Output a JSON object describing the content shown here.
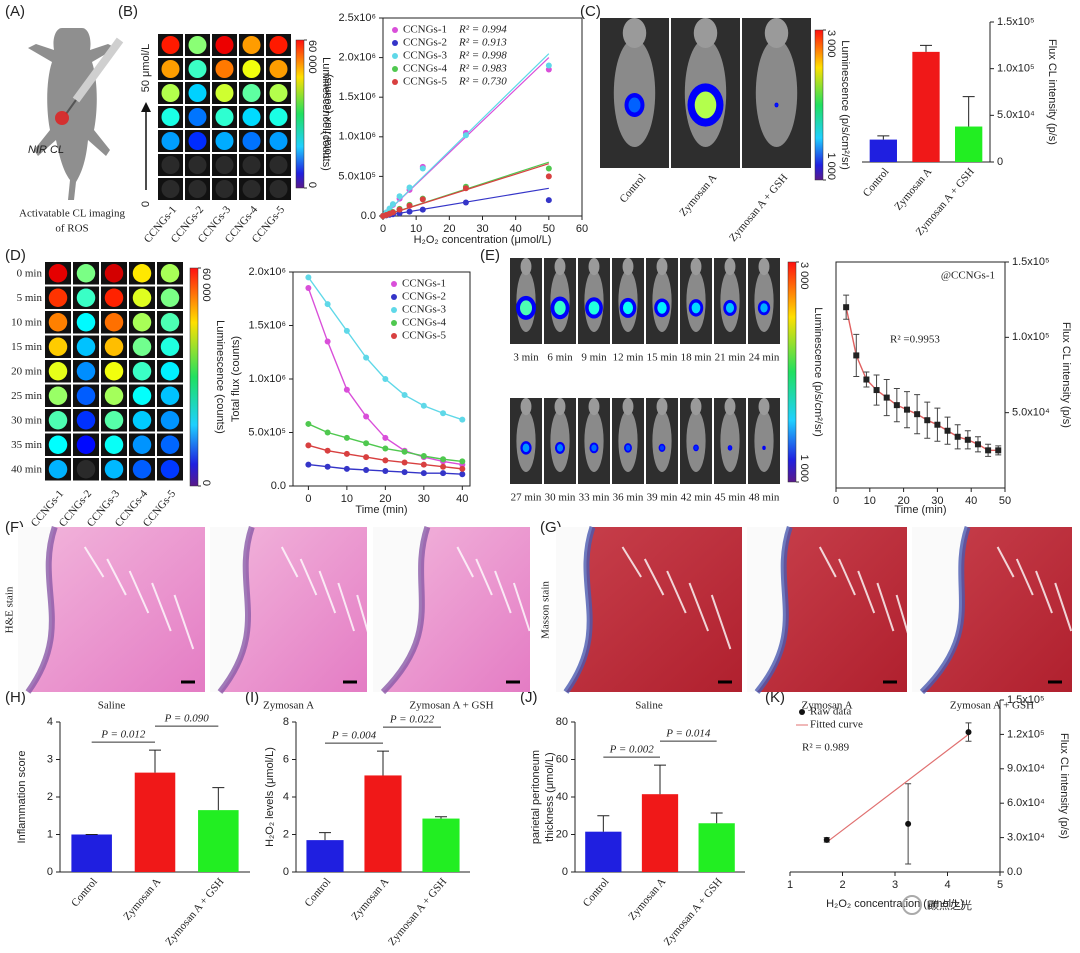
{
  "panel_labels": [
    "(A)",
    "(B)",
    "(C)",
    "(D)",
    "(E)",
    "(F)",
    "(G)",
    "(H)",
    "(I)",
    "(J)",
    "(K)"
  ],
  "panel_a": {
    "label": "NIR CL",
    "caption": [
      "Activatable CL imaging",
      "of ROS"
    ]
  },
  "panel_b_image": {
    "columns": [
      "CCNGs-1",
      "CCNGs-2",
      "CCNGs-3",
      "CCNGs-4",
      "CCNGs-5"
    ],
    "gradient_label": "50 μmol/L",
    "gradient_start": "0",
    "colorbar": {
      "label": "Luminescence (counts)",
      "lim": [
        0,
        60000
      ],
      "ticks": [
        0,
        {
          "value": 60000,
          "label": "60 000"
        }
      ]
    }
  },
  "panel_c_image": {
    "columns": [
      "Control",
      "Zymosan A",
      "Zymosan A + GSH"
    ],
    "colorbar": {
      "label": "Luminescence (p/s/cm²/sr)",
      "lim": [
        1000,
        3000
      ],
      "ticks": [
        {
          "value": 1000,
          "label": "1 000"
        },
        {
          "value": 3000,
          "label": "3 000"
        }
      ]
    }
  },
  "panel_d_image": {
    "rows": [
      "0 min",
      "5 min",
      "10 min",
      "15 min",
      "20 min",
      "25 min",
      "30 min",
      "35 min",
      "40 min"
    ],
    "columns": [
      "CCNGs-1",
      "CCNGs-2",
      "CCNGs-3",
      "CCNGs-4",
      "CCNGs-5"
    ],
    "colorbar": {
      "label": "Luminescence (counts)",
      "lim": [
        0,
        60000
      ],
      "ticks": [
        0,
        {
          "value": 60000,
          "label": "60 000"
        }
      ]
    }
  },
  "panel_e_image": {
    "times": [
      "3 min",
      "6 min",
      "9 min",
      "12 min",
      "15 min",
      "18 min",
      "21 min",
      "24 min",
      "27 min",
      "30 min",
      "33 min",
      "36 min",
      "39 min",
      "42 min",
      "45 min",
      "48 min"
    ],
    "colorbar": {
      "label": "Luminescence (p/s/cm²/sr)",
      "lim": [
        1000,
        3000
      ],
      "ticks": [
        {
          "value": 1000,
          "label": "1 000"
        },
        {
          "value": 3000,
          "label": "3 000"
        }
      ]
    }
  },
  "panel_f": {
    "stain": "H&E stain",
    "columns": [
      "Saline",
      "Zymosan A",
      "Zymosan A + GSH"
    ]
  },
  "panel_g": {
    "stain": "Masson stain",
    "columns": [
      "Saline",
      "Zymosan A",
      "Zymosan A + GSH"
    ]
  },
  "watermark": "碳点之光",
  "chart_data": [
    {
      "type": "scatter",
      "xlabel": "H₂O₂ concentration (μmol/L)",
      "ylabel": "Total flux (counts)",
      "xlim": [
        0,
        60
      ],
      "xticks": [
        0,
        10,
        20,
        30,
        40,
        50,
        60
      ],
      "ylim": [
        0,
        2500000
      ],
      "yticks": [
        {
          "value": 0,
          "label": "0.0"
        },
        {
          "value": 500000,
          "label": "5.0x10⁵"
        },
        {
          "value": 1000000,
          "label": "1.0x10⁶"
        },
        {
          "value": 1500000,
          "label": "1.5x10⁶"
        },
        {
          "value": 2000000,
          "label": "2.0x10⁶"
        },
        {
          "value": 2500000,
          "label": "2.5x10⁶"
        }
      ],
      "frame": true,
      "legend": "upper left",
      "x": [
        0,
        1,
        2,
        3,
        5,
        8,
        12,
        25,
        50
      ],
      "series": [
        {
          "name": "CCNGs-1",
          "annotation": "R² = 0.994",
          "color": "#d94fd9",
          "values": [
            0,
            40000,
            90000,
            140000,
            220000,
            330000,
            620000,
            1050000,
            1850000
          ],
          "fit": {
            "x": [
              0,
              50
            ],
            "values": [
              0,
              2000000
            ]
          }
        },
        {
          "name": "CCNGs-2",
          "annotation": "R² = 0.913",
          "color": "#3535c8",
          "values": [
            0,
            8000,
            15000,
            22000,
            35000,
            55000,
            80000,
            170000,
            200000
          ],
          "fit": {
            "x": [
              0,
              50
            ],
            "values": [
              0,
              350000
            ]
          }
        },
        {
          "name": "CCNGs-3",
          "annotation": "R² = 0.998",
          "color": "#5fd8e8",
          "values": [
            0,
            45000,
            95000,
            150000,
            250000,
            360000,
            600000,
            1020000,
            1900000
          ],
          "fit": {
            "x": [
              0,
              50
            ],
            "values": [
              0,
              2050000
            ]
          }
        },
        {
          "name": "CCNGs-4",
          "annotation": "R² = 0.983",
          "color": "#4fc84f",
          "values": [
            0,
            12000,
            30000,
            50000,
            90000,
            140000,
            220000,
            370000,
            600000
          ],
          "fit": {
            "x": [
              0,
              50
            ],
            "values": [
              0,
              680000
            ]
          }
        },
        {
          "name": "CCNGs-5",
          "annotation": "R² = 0.730",
          "color": "#d84040",
          "values": [
            0,
            12000,
            28000,
            45000,
            80000,
            130000,
            210000,
            350000,
            500000
          ],
          "fit": {
            "x": [
              0,
              50
            ],
            "values": [
              0,
              660000
            ]
          }
        }
      ]
    },
    {
      "type": "bar",
      "ylabel": "Flux CL intensity (p/s)",
      "categories": [
        "Control",
        "Zymosan A",
        "Zymosan A + GSH"
      ],
      "values": [
        24000,
        118000,
        38000
      ],
      "errors": [
        4000,
        7000,
        32000
      ],
      "colors": [
        "#1f1fe0",
        "#f01818",
        "#22ee22"
      ],
      "ylim": [
        0,
        150000
      ],
      "yticks": [
        0,
        {
          "value": 50000,
          "label": "5.0x10⁴"
        },
        {
          "value": 100000,
          "label": "1.0x10⁵"
        },
        {
          "value": 150000,
          "label": "1.5x10⁵"
        }
      ],
      "yaxis_side": "right"
    },
    {
      "type": "line",
      "xlabel": "Time (min)",
      "ylabel": "Total flux (counts)",
      "xlim": [
        -4,
        42
      ],
      "xticks": [
        0,
        10,
        20,
        30,
        40
      ],
      "ylim": [
        0,
        2000000
      ],
      "yticks": [
        {
          "value": 0,
          "label": "0.0"
        },
        {
          "value": 500000,
          "label": "5.0x10⁵"
        },
        {
          "value": 1000000,
          "label": "1.0x10⁶"
        },
        {
          "value": 1500000,
          "label": "1.5x10⁶"
        },
        {
          "value": 2000000,
          "label": "2.0x10⁶"
        }
      ],
      "frame": true,
      "legend": "upper right",
      "x": [
        0,
        5,
        10,
        15,
        20,
        25,
        30,
        35,
        40
      ],
      "series": [
        {
          "name": "CCNGs-1",
          "color": "#d94fd9",
          "values": [
            1850000,
            1350000,
            900000,
            650000,
            450000,
            330000,
            270000,
            230000,
            200000
          ]
        },
        {
          "name": "CCNGs-2",
          "color": "#3535c8",
          "values": [
            200000,
            180000,
            160000,
            150000,
            140000,
            130000,
            120000,
            120000,
            110000
          ]
        },
        {
          "name": "CCNGs-3",
          "color": "#5fd8e8",
          "values": [
            1950000,
            1700000,
            1450000,
            1200000,
            1000000,
            850000,
            750000,
            680000,
            620000
          ]
        },
        {
          "name": "CCNGs-4",
          "color": "#4fc84f",
          "values": [
            580000,
            500000,
            450000,
            400000,
            350000,
            320000,
            280000,
            250000,
            230000
          ]
        },
        {
          "name": "CCNGs-5",
          "color": "#d84040",
          "values": [
            380000,
            330000,
            300000,
            270000,
            240000,
            220000,
            200000,
            180000,
            160000
          ]
        }
      ]
    },
    {
      "type": "line",
      "xlabel": "Time (min)",
      "ylabel": "Flux CL intensity (p/s)",
      "xlim": [
        0,
        50
      ],
      "xticks": [
        0,
        10,
        20,
        30,
        40,
        50
      ],
      "ylim": [
        0,
        150000
      ],
      "yticks": [
        {
          "value": 50000,
          "label": "5.0x10⁴"
        },
        {
          "value": 100000,
          "label": "1.0x10⁵"
        },
        {
          "value": 150000,
          "label": "1.5x10⁵"
        }
      ],
      "frame": true,
      "yaxis_side": "right",
      "notes": [
        "@CCNGs-1",
        "R² =0.9953"
      ],
      "x": [
        3,
        6,
        9,
        12,
        15,
        18,
        21,
        24,
        27,
        30,
        33,
        36,
        39,
        42,
        45,
        48
      ],
      "series": [
        {
          "color": "#222222",
          "line_color": "#e06060",
          "values": [
            120000,
            88000,
            72000,
            65000,
            60000,
            55000,
            52000,
            49000,
            45000,
            42000,
            38000,
            34000,
            32000,
            29000,
            25000,
            25000
          ],
          "errors": [
            8000,
            14000,
            5000,
            10000,
            12000,
            11000,
            12000,
            13000,
            12000,
            11000,
            9000,
            8000,
            6000,
            5000,
            4000,
            3000
          ]
        }
      ]
    },
    {
      "type": "bar",
      "ylabel": "Inflammation score",
      "categories": [
        "Control",
        "Zymosan A",
        "Zymosan A + GSH"
      ],
      "values": [
        1,
        2.65,
        1.65
      ],
      "errors": [
        0,
        0.6,
        0.6
      ],
      "colors": [
        "#1f1fe0",
        "#f01818",
        "#22ee22"
      ],
      "ylim": [
        0,
        4
      ],
      "yticks": [
        0,
        1,
        2,
        3,
        4
      ],
      "annotations": [
        "P = 0.012",
        "P = 0.090"
      ]
    },
    {
      "type": "bar",
      "ylabel": "H₂O₂ levels (μmol/L)",
      "categories": [
        "Control",
        "Zymosan A",
        "Zymosan A + GSH"
      ],
      "values": [
        1.7,
        5.15,
        2.85
      ],
      "errors": [
        0.4,
        1.3,
        0.1
      ],
      "colors": [
        "#1f1fe0",
        "#f01818",
        "#22ee22"
      ],
      "ylim": [
        0,
        8
      ],
      "yticks": [
        0,
        2,
        4,
        6,
        8
      ],
      "annotations": [
        "P = 0.004",
        "P = 0.022"
      ]
    },
    {
      "type": "bar",
      "ylabel": [
        "parietal peritoneum",
        "thickness (μmol/L)"
      ],
      "categories": [
        "Control",
        "Zymosan A",
        "Zymosan A + GSH"
      ],
      "values": [
        21.5,
        41.5,
        26
      ],
      "errors": [
        8.5,
        15.5,
        5.5
      ],
      "colors": [
        "#1f1fe0",
        "#f01818",
        "#22ee22"
      ],
      "ylim": [
        0,
        80
      ],
      "yticks": [
        0,
        20,
        40,
        60,
        80
      ],
      "annotations": [
        "P = 0.002",
        "P = 0.014"
      ]
    },
    {
      "type": "scatter",
      "xlabel": "H₂O₂ concentration (μmol/L)",
      "ylabel": "Flux CL intensity (p/s)",
      "xlim": [
        1,
        5
      ],
      "xticks": [
        1,
        2,
        3,
        4,
        5
      ],
      "ylim": [
        0,
        150000
      ],
      "yticks": [
        {
          "value": 0,
          "label": "0.0"
        },
        {
          "value": 30000,
          "label": "3.0x10⁴"
        },
        {
          "value": 60000,
          "label": "6.0x10⁴"
        },
        {
          "value": 90000,
          "label": "9.0x10⁴"
        },
        {
          "value": 120000,
          "label": "1.2x10⁵"
        },
        {
          "value": 150000,
          "label": "1.5x10⁵"
        }
      ],
      "yaxis_side": "right",
      "legend": "upper left",
      "notes": [
        "R² = 0.989"
      ],
      "series": [
        {
          "name": "Raw data",
          "color": "#111111",
          "x": [
            1.7,
            3.25,
            4.4
          ],
          "values": [
            28000,
            42000,
            122000
          ],
          "errors": [
            2000,
            35000,
            8000
          ],
          "fit": {
            "x": [
              1.7,
              4.4
            ],
            "values": [
              26000,
              120000
            ]
          },
          "fit_name": "Fitted curve",
          "fit_color": "#e07070"
        }
      ]
    }
  ]
}
